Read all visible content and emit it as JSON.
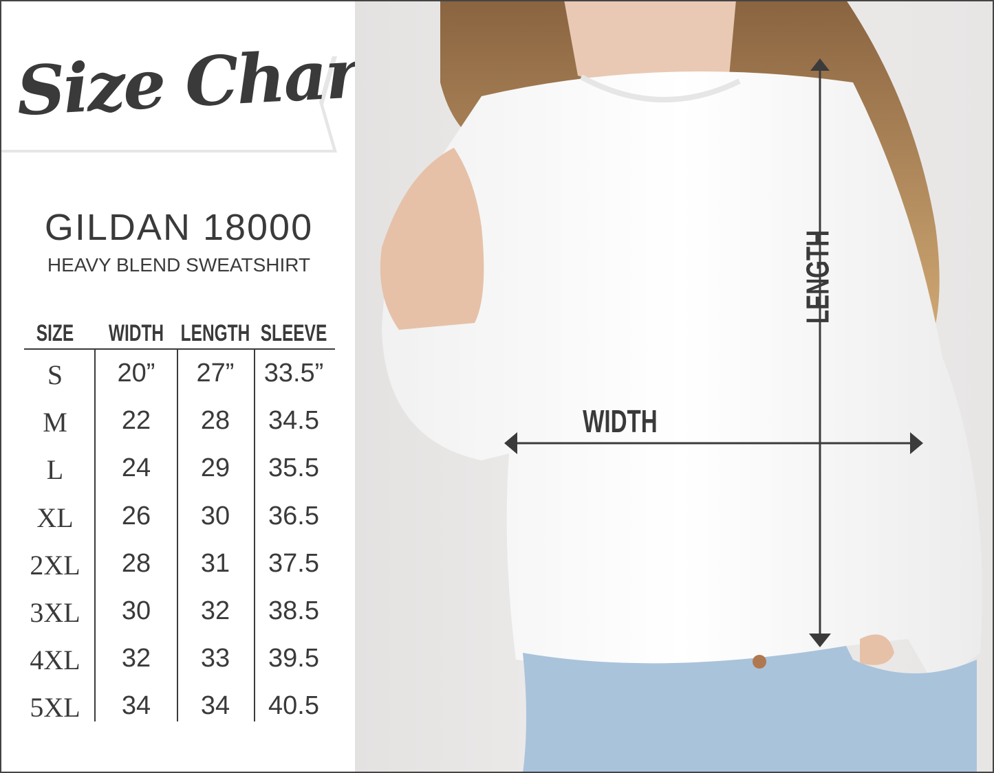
{
  "title": "Size Chart",
  "product": {
    "model": "GILDAN 18000",
    "description": "HEAVY BLEND SWEATSHIRT"
  },
  "table": {
    "headers": [
      "SIZE",
      "WIDTH",
      "LENGTH",
      "SLEEVE"
    ],
    "rows": [
      [
        "S",
        "20”",
        "27”",
        "33.5”"
      ],
      [
        "M",
        "22",
        "28",
        "34.5"
      ],
      [
        "L",
        "24",
        "29",
        "35.5"
      ],
      [
        "XL",
        "26",
        "30",
        "36.5"
      ],
      [
        "2XL",
        "28",
        "31",
        "37.5"
      ],
      [
        "3XL",
        "30",
        "32",
        "38.5"
      ],
      [
        "4XL",
        "32",
        "33",
        "39.5"
      ],
      [
        "5XL",
        "34",
        "34",
        "40.5"
      ]
    ]
  },
  "photo": {
    "width_label": "WIDTH",
    "length_label": "LENGTH"
  },
  "colors": {
    "text": "#3a3a3a",
    "sweatshirt": "#ffffff",
    "jeans": "#a9c3db",
    "hair": "#a57a4e"
  }
}
